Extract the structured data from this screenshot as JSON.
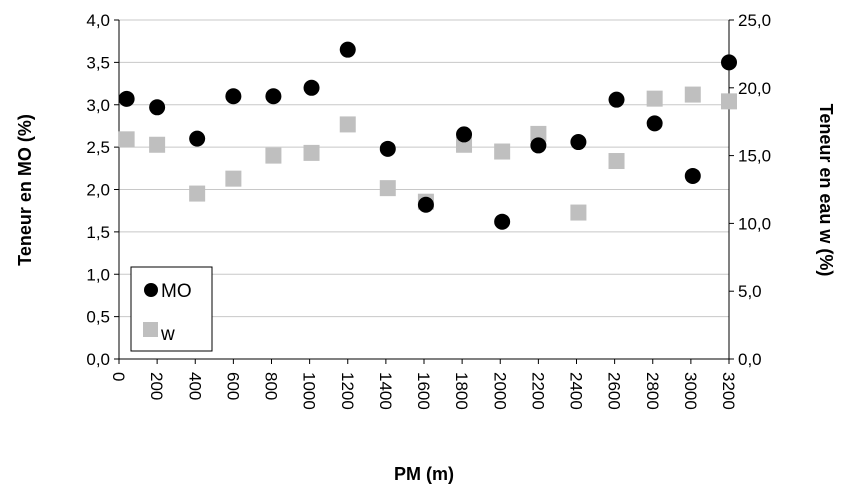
{
  "chart_data": {
    "type": "scatter",
    "xlabel": "PM (m)",
    "ylabel": "Teneur en MO (%)",
    "y2label": "Teneur en eau  w (%)",
    "x_ticks": [
      "0",
      "200",
      "400",
      "600",
      "800",
      "1000",
      "1200",
      "1400",
      "1600",
      "1800",
      "2000",
      "2200",
      "2400",
      "2600",
      "2800",
      "3000",
      "3200"
    ],
    "y_ticks": [
      "0,0",
      "0,5",
      "1,0",
      "1,5",
      "2,0",
      "2,5",
      "3,0",
      "3,5",
      "4,0"
    ],
    "y2_ticks": [
      "0,0",
      "5,0",
      "10,0",
      "15,0",
      "20,0",
      "25,0"
    ],
    "xlim": [
      0,
      3200
    ],
    "ylim": [
      0,
      4
    ],
    "y2lim": [
      0,
      25
    ],
    "grid": "horizontal",
    "legend_position": "bottom-left",
    "series": [
      {
        "name": "MO",
        "axis": "left",
        "marker": "circle",
        "color": "#000000",
        "x": [
          40,
          200,
          410,
          600,
          810,
          1010,
          1200,
          1410,
          1610,
          1810,
          2010,
          2200,
          2410,
          2610,
          2810,
          3010,
          3200
        ],
        "y": [
          3.07,
          2.97,
          2.6,
          3.1,
          3.1,
          3.2,
          3.65,
          2.48,
          1.82,
          2.65,
          1.62,
          2.52,
          2.56,
          3.06,
          2.78,
          2.16,
          3.5
        ]
      },
      {
        "name": "w",
        "axis": "right",
        "marker": "square",
        "color": "#bfbfbf",
        "x": [
          40,
          200,
          410,
          600,
          810,
          1010,
          1200,
          1410,
          1610,
          1810,
          2010,
          2200,
          2410,
          2610,
          2810,
          3010,
          3200
        ],
        "y": [
          16.2,
          15.8,
          12.2,
          13.3,
          15.0,
          15.2,
          17.3,
          12.6,
          11.6,
          15.8,
          15.3,
          16.6,
          10.8,
          14.6,
          19.2,
          19.5,
          19.0
        ]
      }
    ]
  }
}
